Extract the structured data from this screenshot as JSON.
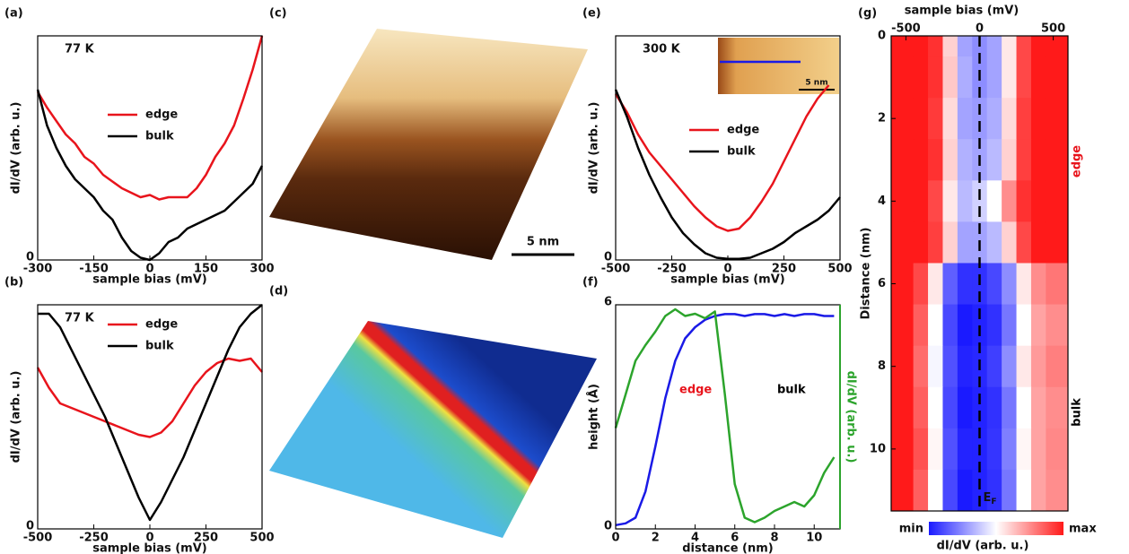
{
  "images": [
    {
      "panel": "(c)",
      "scale_bar": "5 nm"
    },
    {
      "panel": "(d)"
    }
  ],
  "chart_data": [
    {
      "type": "line",
      "panel": "(a)",
      "annotation": "77 K",
      "xlabel": "sample bias (mV)",
      "ylabel": "dI/dV (arb. u.)",
      "x": [
        -300,
        -275,
        -250,
        -225,
        -200,
        -175,
        -150,
        -125,
        -100,
        -75,
        -50,
        -25,
        0,
        25,
        50,
        75,
        100,
        125,
        150,
        175,
        200,
        225,
        250,
        275,
        300
      ],
      "xlim": [
        -300,
        300
      ],
      "xticks": [
        -300,
        -150,
        0,
        150,
        300
      ],
      "ylim": [
        0,
        10
      ],
      "yticks": [
        0
      ],
      "series": [
        {
          "name": "edge",
          "color": "#e8141c",
          "values": [
            7.5,
            6.8,
            6.2,
            5.6,
            5.2,
            4.6,
            4.3,
            3.8,
            3.5,
            3.2,
            3.0,
            2.8,
            2.9,
            2.7,
            2.8,
            2.8,
            2.8,
            3.2,
            3.8,
            4.6,
            5.2,
            6.0,
            7.2,
            8.5,
            10
          ]
        },
        {
          "name": "bulk",
          "color": "#000000",
          "values": [
            7.6,
            6.0,
            5.0,
            4.2,
            3.6,
            3.2,
            2.8,
            2.2,
            1.8,
            1.0,
            0.4,
            0.1,
            0.0,
            0.3,
            0.8,
            1.0,
            1.4,
            1.6,
            1.8,
            2.0,
            2.2,
            2.6,
            3.0,
            3.4,
            4.2
          ]
        }
      ]
    },
    {
      "type": "line",
      "panel": "(b)",
      "annotation": "77 K",
      "xlabel": "sample bias (mV)",
      "ylabel": "dI/dV (arb. u.)",
      "x": [
        -500,
        -450,
        -400,
        -350,
        -300,
        -250,
        -200,
        -150,
        -100,
        -50,
        0,
        50,
        100,
        150,
        200,
        250,
        300,
        350,
        400,
        450,
        500
      ],
      "xlim": [
        -500,
        500
      ],
      "xticks": [
        -500,
        -250,
        0,
        250,
        500
      ],
      "ylim": [
        0,
        10
      ],
      "yticks": [
        0
      ],
      "series": [
        {
          "name": "edge",
          "color": "#e8141c",
          "values": [
            7.2,
            6.3,
            5.6,
            5.4,
            5.2,
            5.0,
            4.8,
            4.6,
            4.4,
            4.2,
            4.1,
            4.3,
            4.8,
            5.6,
            6.4,
            7.0,
            7.4,
            7.6,
            7.5,
            7.6,
            7.0
          ]
        },
        {
          "name": "bulk",
          "color": "#000000",
          "values": [
            9.6,
            9.6,
            9.0,
            8.0,
            7.0,
            6.0,
            5.0,
            3.8,
            2.6,
            1.4,
            0.4,
            1.2,
            2.2,
            3.2,
            4.4,
            5.6,
            6.8,
            8.0,
            9.0,
            9.6,
            10.0
          ]
        }
      ]
    },
    {
      "type": "line",
      "panel": "(e)",
      "annotation": "300 K",
      "inset_scale_bar": "5 nm",
      "xlabel": "sample bias (mV)",
      "ylabel": "dI/dV (arb. u.)",
      "x": [
        -500,
        -450,
        -400,
        -350,
        -300,
        -250,
        -200,
        -150,
        -100,
        -50,
        0,
        50,
        100,
        150,
        200,
        250,
        300,
        350,
        400,
        450,
        500
      ],
      "xlim": [
        -500,
        500
      ],
      "xticks": [
        -500,
        -250,
        0,
        250,
        500
      ],
      "ylim": [
        0,
        10
      ],
      "yticks": [
        0
      ],
      "series": [
        {
          "name": "edge",
          "color": "#e8141c",
          "values": [
            7.4,
            6.6,
            5.6,
            4.8,
            4.2,
            3.6,
            3.0,
            2.4,
            1.9,
            1.5,
            1.3,
            1.4,
            1.9,
            2.6,
            3.4,
            4.4,
            5.4,
            6.4,
            7.2,
            7.8,
            null
          ]
        },
        {
          "name": "bulk",
          "color": "#000000",
          "values": [
            7.6,
            6.4,
            5.0,
            3.8,
            2.8,
            1.9,
            1.2,
            0.7,
            0.3,
            0.1,
            0.05,
            0.05,
            0.1,
            0.3,
            0.5,
            0.8,
            1.2,
            1.5,
            1.8,
            2.2,
            2.8
          ]
        }
      ]
    },
    {
      "type": "line",
      "panel": "(f)",
      "xlabel": "distance (nm)",
      "ylabel": "height (Å)",
      "y2label": "dI/dV (arb. u.)",
      "y2color": "#2ca42c",
      "annotations": [
        {
          "text": "edge",
          "color": "#e8141c"
        },
        {
          "text": "bulk",
          "color": "#000000"
        }
      ],
      "x": [
        0,
        0.5,
        1,
        1.5,
        2,
        2.5,
        3,
        3.5,
        4,
        4.5,
        5,
        5.5,
        6,
        6.5,
        7,
        7.5,
        8,
        8.5,
        9,
        9.5,
        10,
        10.5,
        11
      ],
      "xlim": [
        0,
        11.3
      ],
      "xticks": [
        0,
        2,
        4,
        6,
        8,
        10
      ],
      "ylim": [
        0,
        6
      ],
      "yticks": [
        0,
        6
      ],
      "y2lim": [
        0,
        10
      ],
      "series": [
        {
          "name": "height",
          "color": "#1a1ae6",
          "values": [
            0.1,
            0.15,
            0.3,
            1.0,
            2.2,
            3.5,
            4.5,
            5.1,
            5.4,
            5.6,
            5.7,
            5.75,
            5.75,
            5.7,
            5.75,
            5.75,
            5.7,
            5.75,
            5.7,
            5.75,
            5.75,
            5.7,
            5.7
          ]
        },
        {
          "name": "dI/dV",
          "color": "#2ca42c",
          "axis": "y2",
          "values": [
            4.5,
            6.0,
            7.5,
            8.2,
            8.8,
            9.5,
            9.8,
            9.5,
            9.6,
            9.4,
            9.7,
            6.0,
            2.0,
            0.5,
            0.3,
            0.5,
            0.8,
            1.0,
            1.2,
            1.0,
            1.5,
            2.5,
            3.2
          ]
        }
      ]
    },
    {
      "type": "heatmap",
      "panel": "(g)",
      "xlabel": "sample bias (mV)",
      "ylabel": "Distance (nm)",
      "side_labels": [
        "edge",
        "bulk"
      ],
      "side_colors": [
        "#e8141c",
        "#000000"
      ],
      "vline": 0,
      "vline_label": "E",
      "vline_label_sub": "F",
      "x": [
        -600,
        -500,
        -400,
        -300,
        -200,
        -100,
        0,
        100,
        200,
        300,
        400,
        500,
        600
      ],
      "y": [
        0,
        1,
        2,
        3,
        4,
        5,
        6,
        7,
        8,
        9,
        10,
        11
      ],
      "xlim": [
        -600,
        600
      ],
      "xticks": [
        -500,
        0,
        500
      ],
      "ylim": [
        0,
        11.5
      ],
      "yticks": [
        0,
        2,
        4,
        6,
        8,
        10
      ],
      "y_reversed": true,
      "zlim": [
        0,
        1
      ],
      "colorbar": {
        "label": "dI/dV (arb. u.)",
        "ticks": [
          {
            "value": 0,
            "label": "min"
          },
          {
            "value": 1,
            "label": "max"
          }
        ]
      },
      "z": [
        [
          1,
          1,
          1,
          0.95,
          0.6,
          0.3,
          0.25,
          0.3,
          0.55,
          0.9,
          1,
          1,
          1
        ],
        [
          1,
          1,
          1,
          0.95,
          0.62,
          0.32,
          0.25,
          0.3,
          0.55,
          0.9,
          1,
          1,
          1
        ],
        [
          1,
          1,
          1,
          0.93,
          0.58,
          0.3,
          0.28,
          0.32,
          0.58,
          0.92,
          1,
          1,
          1
        ],
        [
          1,
          1,
          1,
          0.95,
          0.6,
          0.33,
          0.3,
          0.35,
          0.6,
          0.92,
          1,
          1,
          1
        ],
        [
          1,
          1,
          1,
          0.9,
          0.55,
          0.35,
          0.4,
          0.5,
          0.75,
          0.95,
          1,
          1,
          1
        ],
        [
          1,
          1,
          1,
          0.92,
          0.6,
          0.3,
          0.3,
          0.35,
          0.6,
          0.9,
          1,
          1,
          1
        ],
        [
          1,
          1,
          0.9,
          0.55,
          0.15,
          0.05,
          0.05,
          0.1,
          0.25,
          0.55,
          0.75,
          0.8,
          0.8
        ],
        [
          1,
          1,
          0.85,
          0.5,
          0.1,
          0.0,
          0.02,
          0.05,
          0.2,
          0.5,
          0.7,
          0.75,
          0.75
        ],
        [
          1,
          1,
          0.82,
          0.48,
          0.12,
          0.02,
          0.03,
          0.08,
          0.25,
          0.55,
          0.72,
          0.78,
          0.78
        ],
        [
          1,
          1,
          0.85,
          0.5,
          0.1,
          0.0,
          0.02,
          0.05,
          0.2,
          0.5,
          0.7,
          0.75,
          0.75
        ],
        [
          1,
          1,
          0.88,
          0.52,
          0.12,
          0.02,
          0.02,
          0.06,
          0.22,
          0.52,
          0.7,
          0.76,
          0.76
        ],
        [
          1,
          1,
          0.85,
          0.5,
          0.1,
          0.0,
          0.02,
          0.05,
          0.2,
          0.5,
          0.7,
          0.75,
          0.75
        ]
      ]
    }
  ]
}
